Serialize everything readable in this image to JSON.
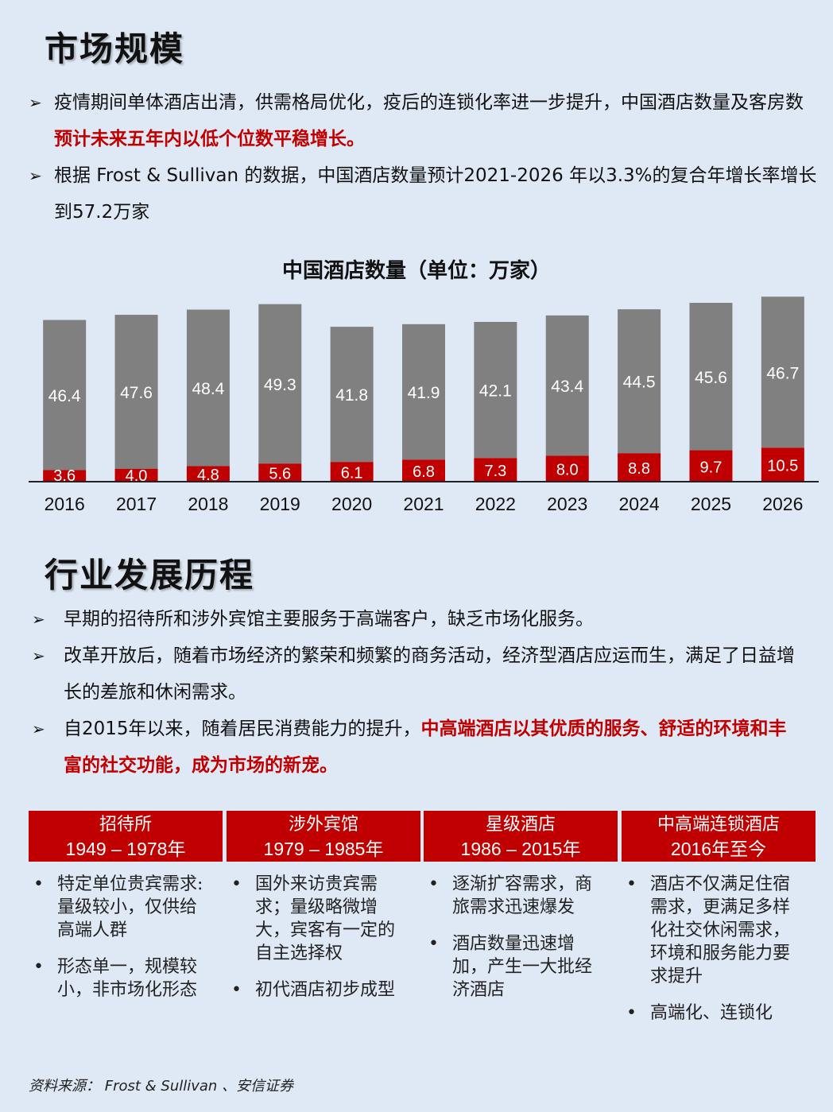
{
  "section1": {
    "heading": "市场规模",
    "bullets": [
      {
        "text": "疫情期间单体酒店出清，供需格局优化，疫后的连锁化率进一步提升，中国酒店数量及客房数",
        "highlight": "预计未来五年内以低个位数平稳增长。"
      },
      {
        "text": "根据 Frost & Sullivan 的数据，中国酒店数量预计2021-2026 年以3.3%的复合年增长率增长到57.2万家",
        "highlight": ""
      }
    ]
  },
  "chart_data": {
    "type": "bar",
    "title": "中国酒店数量（单位：万家）",
    "stacked": true,
    "categories": [
      "2016",
      "2017",
      "2018",
      "2019",
      "2020",
      "2021",
      "2022",
      "2023",
      "2024",
      "2025",
      "2026"
    ],
    "series": [
      {
        "color": "#c00000",
        "values": [
          3.6,
          4.0,
          4.8,
          5.6,
          6.1,
          6.8,
          7.3,
          8.0,
          8.8,
          9.7,
          10.5
        ]
      },
      {
        "color": "#808080",
        "values": [
          46.4,
          47.6,
          48.4,
          49.3,
          41.8,
          41.9,
          42.1,
          43.4,
          44.5,
          45.6,
          46.7
        ]
      }
    ],
    "value_labels": {
      "bottom": [
        "3.6",
        "4.0",
        "4.8",
        "5.6",
        "6.1",
        "6.8",
        "7.3",
        "8.0",
        "8.8",
        "9.7",
        "10.5"
      ],
      "top": [
        "46.4",
        "47.6",
        "48.4",
        "49.3",
        "41.8",
        "41.9",
        "42.1",
        "43.4",
        "44.5",
        "45.6",
        "46.7"
      ]
    },
    "ylim": [
      0,
      58
    ],
    "grid": false,
    "legend": "none"
  },
  "section2": {
    "heading": "行业发展历程",
    "bullets": [
      {
        "text": "早期的招待所和涉外宾馆主要服务于高端客户，缺乏市场化服务。",
        "highlight": ""
      },
      {
        "text": "改革开放后，随着市场经济的繁荣和频繁的商务活动，经济型酒店应运而生，满足了日益增长的差旅和休闲需求。",
        "highlight": ""
      },
      {
        "text": "自2015年以来，随着居民消费能力的提升，",
        "highlight": "中高端酒店以其优质的服务、舒适的环境和丰富的社交功能，成为市场的新宠。"
      }
    ]
  },
  "timeline": [
    {
      "name": "招待所",
      "years": "1949 – 1978年",
      "points": [
        "特定单位贵宾需求:量级较小，仅供给高端人群",
        "形态单一，规模较小，非市场化形态"
      ]
    },
    {
      "name": "涉外宾馆",
      "years": "1979 – 1985年",
      "points": [
        "国外来访贵宾需求；量级略微增大，宾客有一定的自主选择权",
        "初代酒店初步成型"
      ]
    },
    {
      "name": "星级酒店",
      "years": "1986 – 2015年",
      "points": [
        "逐渐扩容需求，商旅需求迅速爆发",
        "酒店数量迅速增加，产生一大批经济酒店"
      ]
    },
    {
      "name": "中高端连锁酒店",
      "years": "2016年至今",
      "points": [
        "酒店不仅满足住宿需求，更满足多样化社交休闲需求，环境和服务能力要求提升",
        "高端化、连锁化"
      ]
    }
  ],
  "source": "资料来源： Frost & Sullivan 、安信证券"
}
